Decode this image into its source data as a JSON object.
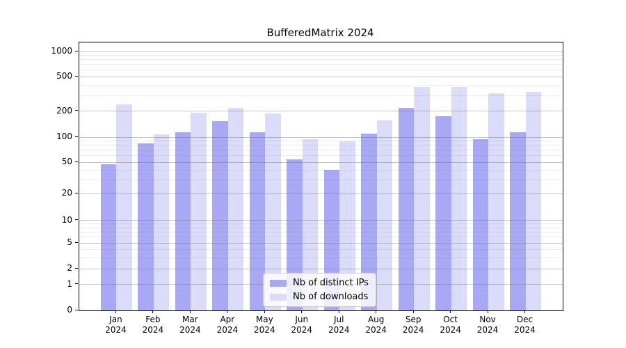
{
  "title": "BufferedMatrix 2024",
  "chart_data": {
    "type": "bar",
    "title": "BufferedMatrix 2024",
    "categories": [
      "Jan",
      "Feb",
      "Mar",
      "Apr",
      "May",
      "Jun",
      "Jul",
      "Aug",
      "Sep",
      "Oct",
      "Nov",
      "Dec"
    ],
    "category_year": "2024",
    "series": [
      {
        "name": "Nb of distinct IPs",
        "color": "#a8a8f5",
        "values": [
          47,
          85,
          115,
          153,
          114,
          54,
          40,
          110,
          218,
          174,
          94,
          115
        ]
      },
      {
        "name": "Nb of downloads",
        "color": "#dbdbfa",
        "values": [
          239,
          108,
          193,
          220,
          188,
          95,
          89,
          158,
          378,
          380,
          322,
          334
        ]
      }
    ],
    "yscale": "symlog",
    "yticks": [
      0,
      1,
      2,
      5,
      10,
      20,
      50,
      100,
      200,
      500,
      1000
    ],
    "xlabel": "",
    "ylabel": "",
    "grid": "both",
    "legend_position": "lower center inside plot"
  }
}
